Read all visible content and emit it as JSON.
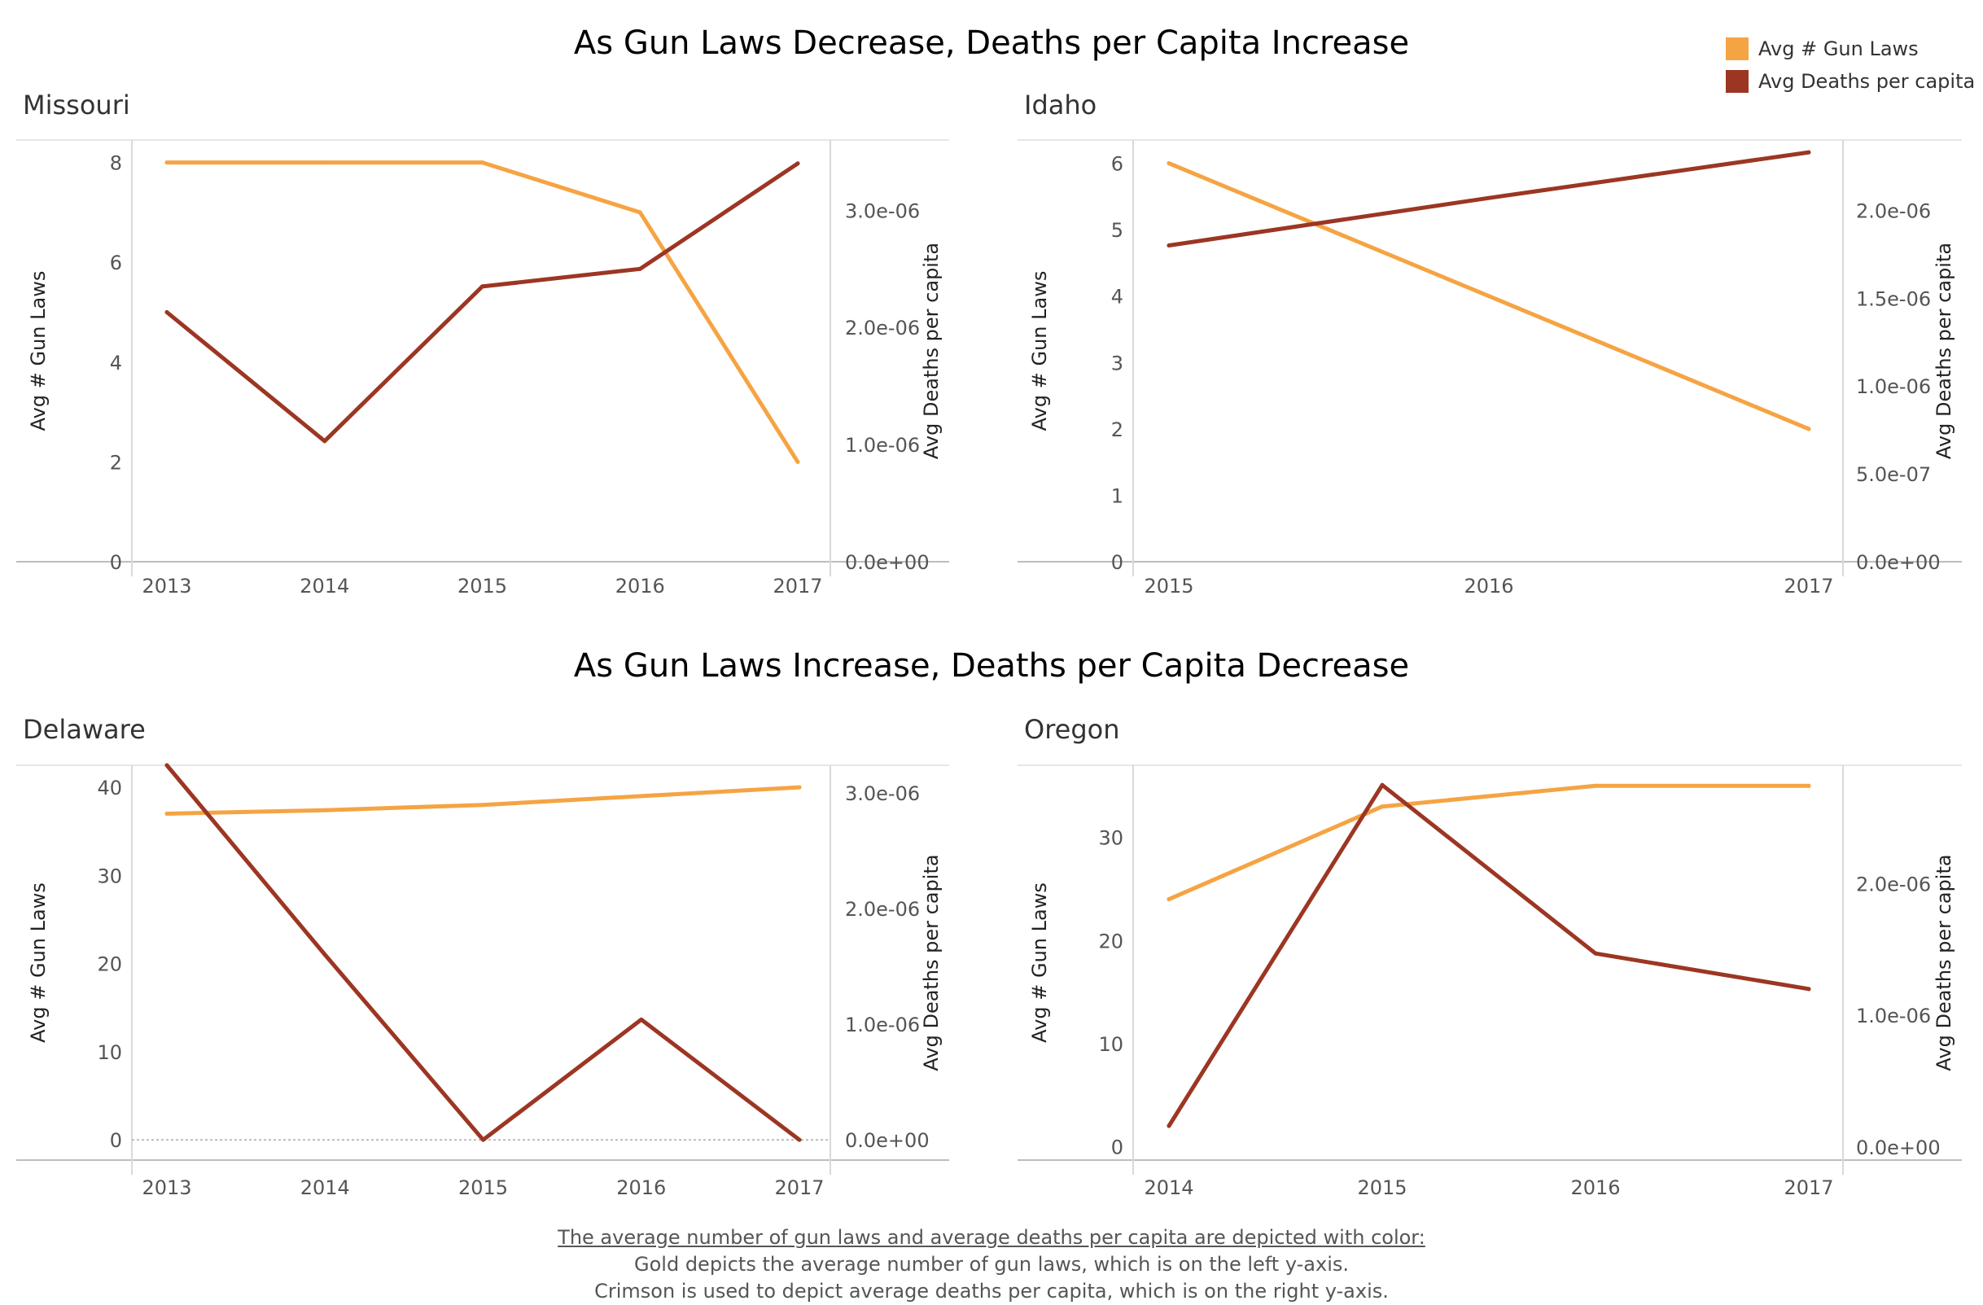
{
  "sections": [
    {
      "title": "As Gun Laws Decrease, Deaths per Capita Increase"
    },
    {
      "title": "As Gun Laws Increase, Deaths per Capita Decrease"
    }
  ],
  "legend": [
    {
      "label": "Avg # Gun Laws",
      "color": "#F5A443"
    },
    {
      "label": "Avg Deaths per capita",
      "color": "#9C3623"
    }
  ],
  "footer": {
    "line1": "The average number of gun laws  and average deaths per capita are depicted with color:",
    "line2": "Gold depicts the average number of gun laws, which is on the left y-axis.",
    "line3": "Crimson is used to depict average deaths per capita, which is on the right y-axis."
  },
  "chart_data": [
    {
      "type": "line",
      "title": "Missouri",
      "x": [
        "2013",
        "2014",
        "2015",
        "2016",
        "2017"
      ],
      "ylabel_left": "Avg # Gun Laws",
      "ylabel_right": "Avg Deaths per capita",
      "yticks_left": [
        "0",
        "2",
        "4",
        "6",
        "8"
      ],
      "yticks_right": [
        "0.0e+00",
        "1.0e-06",
        "2.0e-06",
        "3.0e-06"
      ],
      "ylim_left": [
        0,
        8.45
      ],
      "ylim_right": [
        0,
        3.6e-06
      ],
      "grid": false,
      "series": [
        {
          "name": "Avg # Gun Laws",
          "axis": "left",
          "color": "#F5A443",
          "values": [
            8,
            8,
            8,
            7,
            2
          ]
        },
        {
          "name": "Avg Deaths per capita",
          "axis": "right",
          "color": "#9C3623",
          "values": [
            2.13e-06,
            1.03e-06,
            2.35e-06,
            2.5e-06,
            3.4e-06
          ]
        }
      ]
    },
    {
      "type": "line",
      "title": "Idaho",
      "x": [
        "2015",
        "2016",
        "2017"
      ],
      "ylabel_left": "Avg # Gun Laws",
      "ylabel_right": "Avg Deaths per capita",
      "yticks_left": [
        "0",
        "1",
        "2",
        "3",
        "4",
        "5",
        "6"
      ],
      "yticks_right": [
        "0.0e+00",
        "5.0e-07",
        "1.0e-06",
        "1.5e-06",
        "2.0e-06"
      ],
      "ylim_left": [
        0,
        6.35
      ],
      "ylim_right": [
        0,
        2.4e-06
      ],
      "grid": false,
      "series": [
        {
          "name": "Avg # Gun Laws",
          "axis": "left",
          "color": "#F5A443",
          "values": [
            6,
            4,
            2
          ]
        },
        {
          "name": "Avg Deaths per capita",
          "axis": "right",
          "color": "#9C3623",
          "values": [
            1.8e-06,
            2.07e-06,
            2.33e-06
          ]
        }
      ]
    },
    {
      "type": "line",
      "title": "Delaware",
      "x": [
        "2013",
        "2014",
        "2015",
        "2016",
        "2017"
      ],
      "ylabel_left": "Avg # Gun Laws",
      "ylabel_right": "Avg Deaths per capita",
      "yticks_left": [
        "0",
        "10",
        "20",
        "30",
        "40"
      ],
      "yticks_right": [
        "0.0e+00",
        "1.0e-06",
        "2.0e-06",
        "3.0e-06"
      ],
      "ylim_left": [
        -2.3,
        42.5
      ],
      "ylim_right": [
        -1.75e-07,
        3.24e-06
      ],
      "grid": false,
      "zero_line": true,
      "series": [
        {
          "name": "Avg # Gun Laws",
          "axis": "left",
          "color": "#F5A443",
          "values": [
            37,
            37.4,
            38,
            39,
            40
          ]
        },
        {
          "name": "Avg Deaths per capita",
          "axis": "right",
          "color": "#9C3623",
          "values": [
            3.24e-06,
            1.6e-06,
            0,
            1.04e-06,
            0
          ]
        }
      ]
    },
    {
      "type": "line",
      "title": "Oregon",
      "x": [
        "2014",
        "2015",
        "2016",
        "2017"
      ],
      "ylabel_left": "Avg # Gun Laws",
      "ylabel_right": "Avg Deaths per capita",
      "yticks_left": [
        "0",
        "10",
        "20",
        "30"
      ],
      "yticks_right": [
        "0.0e+00",
        "1.0e-06",
        "2.0e-06"
      ],
      "ylim_left": [
        -1.3,
        37
      ],
      "ylim_right": [
        -1e-07,
        2.9e-06
      ],
      "grid": false,
      "series": [
        {
          "name": "Avg # Gun Laws",
          "axis": "left",
          "color": "#F5A443",
          "values": [
            24,
            33,
            35,
            35
          ]
        },
        {
          "name": "Avg Deaths per capita",
          "axis": "right",
          "color": "#9C3623",
          "values": [
            1.6e-07,
            2.75e-06,
            1.47e-06,
            1.2e-06
          ]
        }
      ]
    }
  ]
}
